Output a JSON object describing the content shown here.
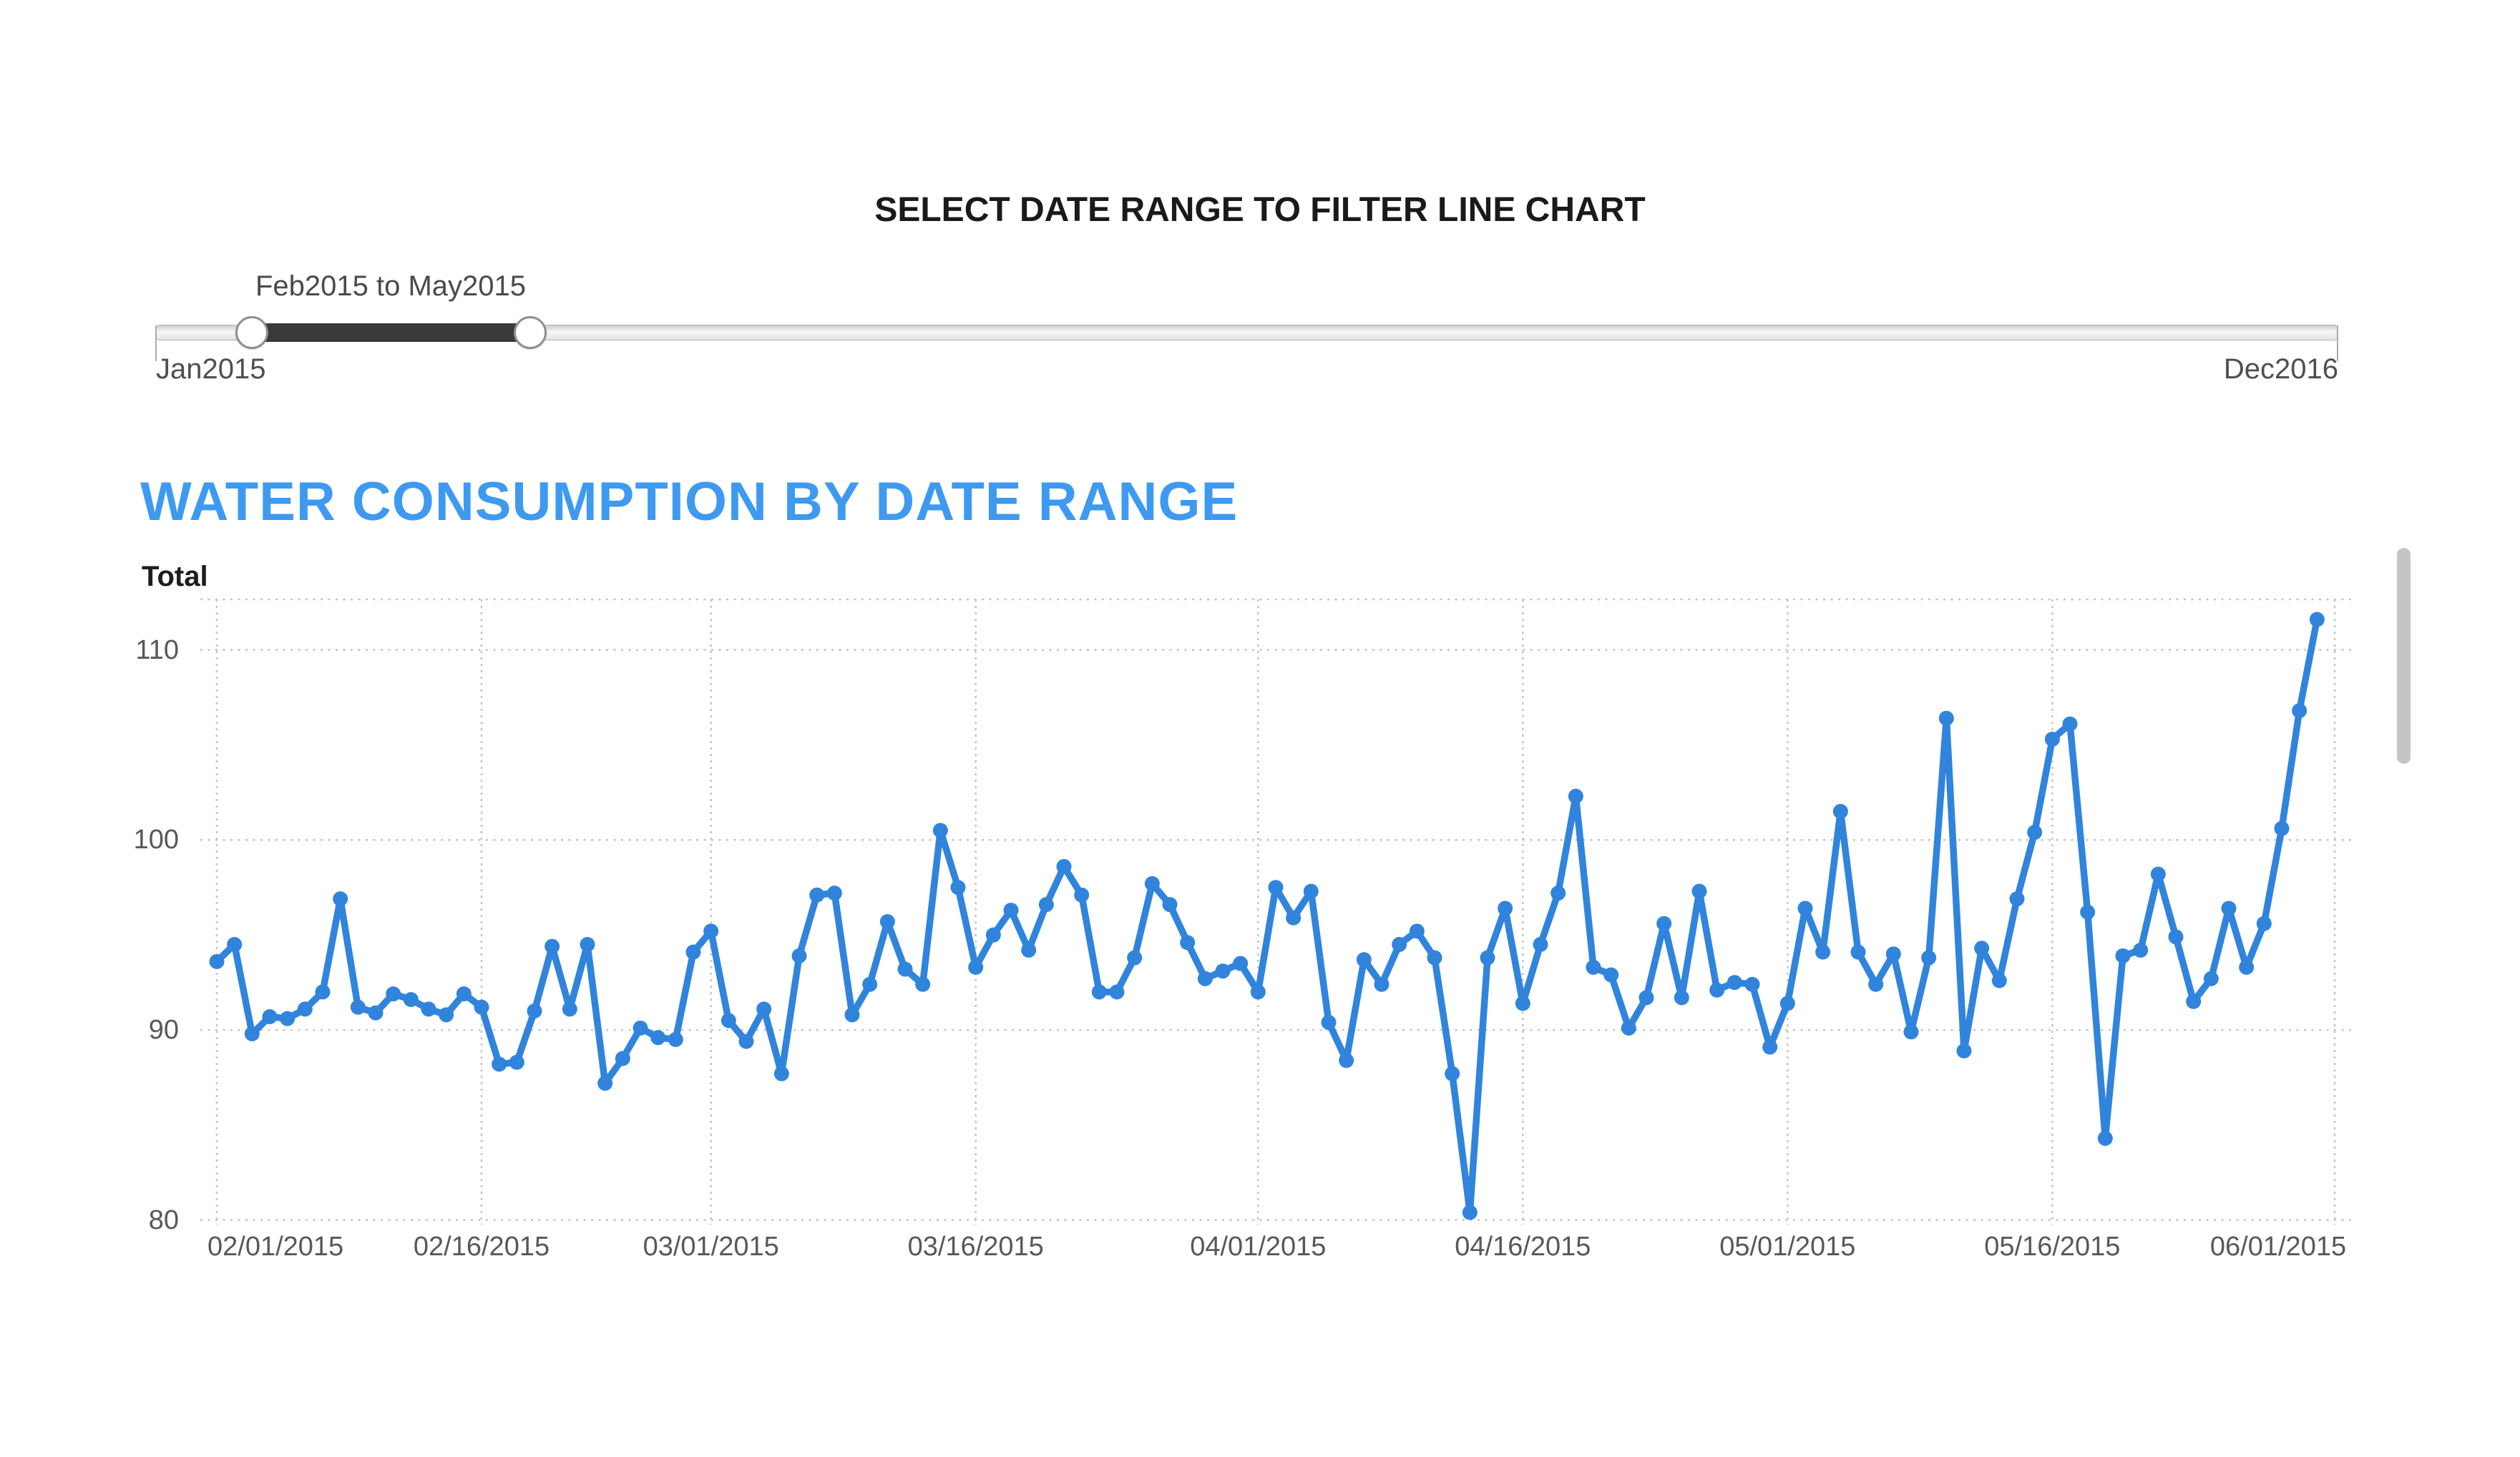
{
  "colors": {
    "accent_title_blue": "#3E9AF0",
    "line_blue": "#3084DC",
    "gridline_gray": "#c6c6c6",
    "slider_selection_dark": "#3a3a3a"
  },
  "filter": {
    "title": "SELECT DATE RANGE TO FILTER LINE CHART",
    "slider": {
      "range_label": "Feb2015 to May2015",
      "selected_start": "Feb2015",
      "selected_end": "May2015",
      "min_label": "Jan2015",
      "max_label": "Dec2016"
    }
  },
  "chart": {
    "title": "WATER CONSUMPTION BY DATE RANGE",
    "y_axis_label": "Total"
  },
  "chart_data": {
    "type": "line",
    "title": "WATER CONSUMPTION BY DATE RANGE",
    "xlabel": "",
    "ylabel": "Total",
    "ylim": [
      80,
      112.7
    ],
    "grid": "dotted",
    "legend": "none",
    "x_tick_labels": [
      "02/01/2015",
      "02/16/2015",
      "03/01/2015",
      "03/16/2015",
      "04/01/2015",
      "04/16/2015",
      "05/01/2015",
      "05/16/2015",
      "06/01/2015"
    ],
    "x_tick_indices": [
      0,
      15,
      28,
      43,
      59,
      74,
      89,
      104,
      120
    ],
    "y_ticks": [
      110,
      100,
      90,
      80
    ],
    "x": [
      "02/01/2015",
      "02/02/2015",
      "02/03/2015",
      "02/04/2015",
      "02/05/2015",
      "02/06/2015",
      "02/07/2015",
      "02/08/2015",
      "02/09/2015",
      "02/10/2015",
      "02/11/2015",
      "02/12/2015",
      "02/13/2015",
      "02/14/2015",
      "02/15/2015",
      "02/16/2015",
      "02/17/2015",
      "02/18/2015",
      "02/19/2015",
      "02/20/2015",
      "02/21/2015",
      "02/22/2015",
      "02/23/2015",
      "02/24/2015",
      "02/25/2015",
      "02/26/2015",
      "02/27/2015",
      "02/28/2015",
      "03/01/2015",
      "03/02/2015",
      "03/03/2015",
      "03/04/2015",
      "03/05/2015",
      "03/06/2015",
      "03/07/2015",
      "03/08/2015",
      "03/09/2015",
      "03/10/2015",
      "03/11/2015",
      "03/12/2015",
      "03/13/2015",
      "03/14/2015",
      "03/15/2015",
      "03/16/2015",
      "03/17/2015",
      "03/18/2015",
      "03/19/2015",
      "03/20/2015",
      "03/21/2015",
      "03/22/2015",
      "03/23/2015",
      "03/24/2015",
      "03/25/2015",
      "03/26/2015",
      "03/27/2015",
      "03/28/2015",
      "03/29/2015",
      "03/30/2015",
      "03/31/2015",
      "04/01/2015",
      "04/02/2015",
      "04/03/2015",
      "04/04/2015",
      "04/05/2015",
      "04/06/2015",
      "04/07/2015",
      "04/08/2015",
      "04/09/2015",
      "04/10/2015",
      "04/11/2015",
      "04/12/2015",
      "04/13/2015",
      "04/14/2015",
      "04/15/2015",
      "04/16/2015",
      "04/17/2015",
      "04/18/2015",
      "04/19/2015",
      "04/20/2015",
      "04/21/2015",
      "04/22/2015",
      "04/23/2015",
      "04/24/2015",
      "04/25/2015",
      "04/26/2015",
      "04/27/2015",
      "04/28/2015",
      "04/29/2015",
      "04/30/2015",
      "05/01/2015",
      "05/02/2015",
      "05/03/2015",
      "05/04/2015",
      "05/05/2015",
      "05/06/2015",
      "05/07/2015",
      "05/08/2015",
      "05/09/2015",
      "05/10/2015",
      "05/11/2015",
      "05/12/2015",
      "05/13/2015",
      "05/14/2015",
      "05/15/2015",
      "05/16/2015",
      "05/17/2015",
      "05/18/2015",
      "05/19/2015",
      "05/20/2015",
      "05/21/2015",
      "05/22/2015",
      "05/23/2015",
      "05/24/2015",
      "05/25/2015",
      "05/26/2015",
      "05/27/2015",
      "05/28/2015",
      "05/29/2015",
      "05/30/2015",
      "05/31/2015"
    ],
    "values": [
      93.6,
      94.5,
      89.8,
      90.7,
      90.6,
      91.1,
      92.0,
      96.9,
      91.2,
      90.9,
      91.9,
      91.6,
      91.1,
      90.8,
      91.9,
      91.2,
      88.2,
      88.3,
      91.0,
      94.4,
      91.1,
      94.5,
      87.2,
      88.5,
      90.1,
      89.6,
      89.5,
      94.1,
      95.2,
      90.5,
      89.4,
      91.1,
      87.7,
      93.9,
      97.1,
      97.2,
      90.8,
      92.4,
      95.7,
      93.2,
      92.4,
      100.5,
      97.5,
      93.3,
      95.0,
      96.3,
      94.2,
      96.6,
      98.6,
      97.1,
      92.0,
      92.0,
      93.8,
      97.7,
      96.6,
      94.6,
      92.7,
      93.1,
      93.5,
      92.0,
      97.5,
      95.9,
      97.3,
      90.4,
      88.4,
      93.7,
      92.4,
      94.5,
      95.2,
      93.8,
      87.7,
      80.4,
      93.8,
      96.4,
      91.4,
      94.5,
      97.2,
      102.3,
      93.3,
      92.9,
      90.1,
      91.7,
      95.6,
      91.7,
      97.3,
      92.1,
      92.5,
      92.4,
      89.1,
      91.4,
      96.4,
      94.1,
      101.5,
      94.1,
      92.4,
      94.0,
      89.9,
      93.8,
      106.4,
      88.9,
      94.3,
      92.6,
      96.9,
      100.4,
      105.3,
      106.1,
      96.2,
      84.3,
      93.9,
      94.2,
      98.2,
      94.9,
      91.5,
      92.7,
      96.4,
      93.3,
      95.6,
      100.6,
      106.8,
      111.6
    ]
  }
}
